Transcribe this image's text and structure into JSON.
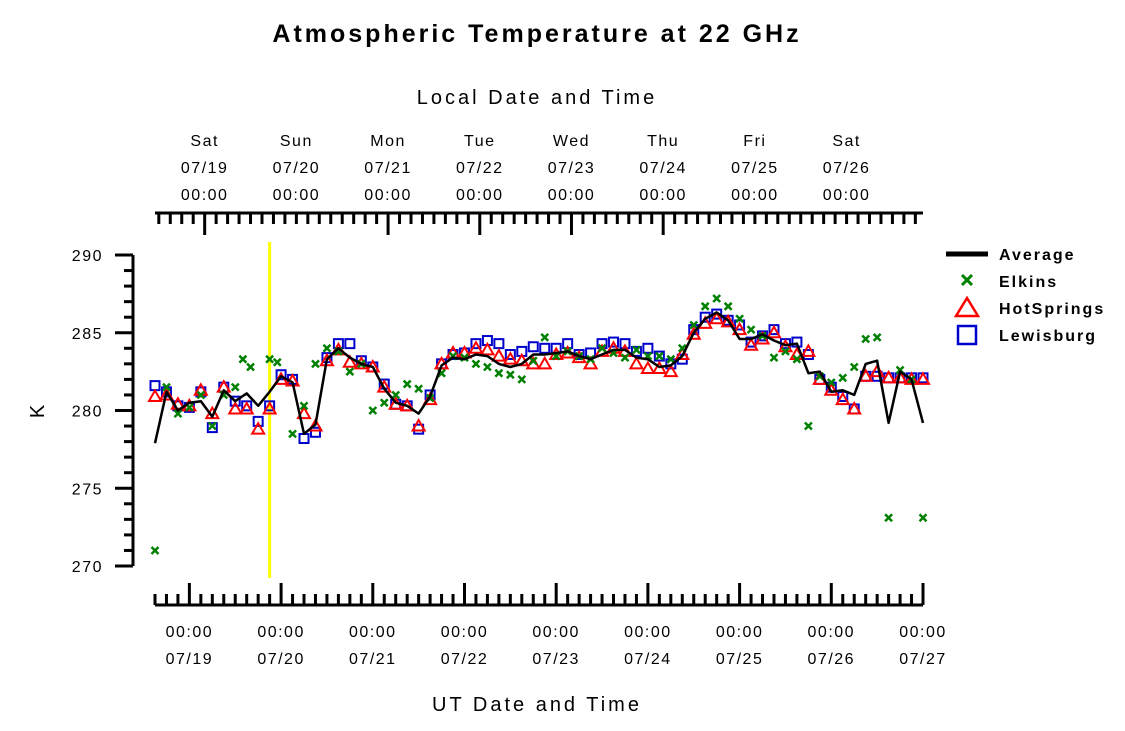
{
  "chart_data": {
    "type": "line",
    "title": "Atmospheric Temperature at 22 GHz",
    "ylabel": "K",
    "ylim": [
      270,
      290
    ],
    "yticks": [
      270,
      275,
      280,
      285,
      290
    ],
    "top_axis": {
      "label": "Local Date and Time",
      "ticks": [
        {
          "day": "Sat",
          "date": "07/19",
          "time": "00:00"
        },
        {
          "day": "Sun",
          "date": "07/20",
          "time": "00:00"
        },
        {
          "day": "Mon",
          "date": "07/21",
          "time": "00:00"
        },
        {
          "day": "Tue",
          "date": "07/22",
          "time": "00:00"
        },
        {
          "day": "Wed",
          "date": "07/23",
          "time": "00:00"
        },
        {
          "day": "Thu",
          "date": "07/24",
          "time": "00:00"
        },
        {
          "day": "Fri",
          "date": "07/25",
          "time": "00:00"
        },
        {
          "day": "Sat",
          "date": "07/26",
          "time": "00:00"
        }
      ]
    },
    "bottom_axis": {
      "label": "UT Date and Time",
      "ticks": [
        {
          "time": "00:00",
          "date": "07/19"
        },
        {
          "time": "00:00",
          "date": "07/20"
        },
        {
          "time": "00:00",
          "date": "07/21"
        },
        {
          "time": "00:00",
          "date": "07/22"
        },
        {
          "time": "00:00",
          "date": "07/23"
        },
        {
          "time": "00:00",
          "date": "07/24"
        },
        {
          "time": "00:00",
          "date": "07/25"
        },
        {
          "time": "00:00",
          "date": "07/26"
        },
        {
          "time": "00:00",
          "date": "07/27"
        }
      ]
    },
    "xlim_ut_days": [
      "07/18 15:00",
      "07/27 00:00"
    ],
    "marker_line": {
      "x": "07/19 21:00",
      "color": "#ffff00"
    },
    "legend_position": "right",
    "series": [
      {
        "name": "Average",
        "color": "#000000",
        "style": "line",
        "x": [
          "07/18 15:00",
          "07/18 18:00",
          "07/18 21:00",
          "07/19 00:00",
          "07/19 03:00",
          "07/19 06:00",
          "07/19 09:00",
          "07/19 12:00",
          "07/19 15:00",
          "07/19 18:00",
          "07/19 21:00",
          "07/20 00:00",
          "07/20 03:00",
          "07/20 06:00",
          "07/20 09:00",
          "07/20 12:00",
          "07/20 15:00",
          "07/20 18:00",
          "07/20 21:00",
          "07/21 00:00",
          "07/21 03:00",
          "07/21 06:00",
          "07/21 09:00",
          "07/21 12:00",
          "07/21 15:00",
          "07/21 18:00",
          "07/21 21:00",
          "07/22 00:00",
          "07/22 03:00",
          "07/22 06:00",
          "07/22 09:00",
          "07/22 12:00",
          "07/22 15:00",
          "07/22 18:00",
          "07/22 21:00",
          "07/23 00:00",
          "07/23 03:00",
          "07/23 06:00",
          "07/23 09:00",
          "07/23 12:00",
          "07/23 15:00",
          "07/23 18:00",
          "07/23 21:00",
          "07/24 00:00",
          "07/24 03:00",
          "07/24 06:00",
          "07/24 09:00",
          "07/24 12:00",
          "07/24 15:00",
          "07/24 18:00",
          "07/24 21:00",
          "07/25 00:00",
          "07/25 03:00",
          "07/25 06:00",
          "07/25 09:00",
          "07/25 12:00",
          "07/25 15:00",
          "07/25 18:00",
          "07/25 21:00",
          "07/26 00:00",
          "07/26 03:00",
          "07/26 06:00",
          "07/26 09:00",
          "07/26 12:00",
          "07/26 15:00",
          "07/26 18:00",
          "07/26 21:00",
          "07/27 00:00"
        ],
        "values": [
          277.9,
          281.2,
          280.0,
          280.5,
          280.6,
          279.6,
          281.3,
          280.6,
          281.1,
          280.3,
          281.2,
          282.2,
          281.8,
          278.5,
          279.1,
          283.3,
          284.0,
          283.4,
          283.0,
          282.8,
          281.4,
          280.5,
          280.3,
          279.8,
          280.9,
          282.9,
          283.4,
          283.3,
          283.6,
          283.5,
          283.0,
          282.8,
          283.0,
          283.6,
          283.6,
          283.7,
          283.8,
          283.5,
          283.3,
          283.6,
          283.9,
          283.9,
          283.4,
          283.3,
          282.8,
          282.9,
          283.5,
          285.0,
          285.9,
          286.3,
          285.8,
          284.6,
          284.6,
          284.9,
          284.5,
          284.2,
          284.3,
          282.4,
          282.5,
          281.2,
          281.3,
          281.0,
          283.0,
          283.2,
          279.2,
          282.5,
          282.0,
          279.2
        ]
      },
      {
        "name": "Elkins",
        "color": "#008000",
        "style": "x",
        "x": [
          "07/18 15:00",
          "07/18 18:00",
          "07/18 21:00",
          "07/19 00:00",
          "07/19 03:00",
          "07/19 06:00",
          "07/19 09:00",
          "07/19 12:00",
          "07/19 14:00",
          "07/19 16:00",
          "07/19 21:00",
          "07/19 23:00",
          "07/20 03:00",
          "07/20 06:00",
          "07/20 09:00",
          "07/20 12:00",
          "07/20 15:00",
          "07/20 18:00",
          "07/20 21:00",
          "07/21 00:00",
          "07/21 03:00",
          "07/21 06:00",
          "07/21 09:00",
          "07/21 12:00",
          "07/21 15:00",
          "07/21 18:00",
          "07/21 21:00",
          "07/22 00:00",
          "07/22 03:00",
          "07/22 06:00",
          "07/22 09:00",
          "07/22 12:00",
          "07/22 15:00",
          "07/22 18:00",
          "07/22 21:00",
          "07/23 00:00",
          "07/23 03:00",
          "07/23 06:00",
          "07/23 09:00",
          "07/23 12:00",
          "07/23 15:00",
          "07/23 18:00",
          "07/23 21:00",
          "07/24 00:00",
          "07/24 03:00",
          "07/24 06:00",
          "07/24 09:00",
          "07/24 12:00",
          "07/24 15:00",
          "07/24 18:00",
          "07/24 21:00",
          "07/25 00:00",
          "07/25 03:00",
          "07/25 06:00",
          "07/25 09:00",
          "07/25 12:00",
          "07/25 15:00",
          "07/25 18:00",
          "07/25 21:00",
          "07/26 00:00",
          "07/26 03:00",
          "07/26 06:00",
          "07/26 09:00",
          "07/26 12:00",
          "07/26 15:00",
          "07/26 18:00",
          "07/26 21:00",
          "07/27 00:00"
        ],
        "values": [
          271.0,
          281.5,
          279.8,
          280.2,
          281.0,
          279.0,
          281.0,
          281.5,
          283.3,
          282.8,
          283.3,
          283.1,
          278.5,
          280.3,
          283.0,
          284.0,
          283.8,
          282.5,
          283.0,
          280.0,
          280.5,
          281.0,
          281.7,
          281.4,
          280.8,
          282.4,
          283.5,
          283.4,
          283.0,
          282.8,
          282.4,
          282.3,
          282.0,
          283.2,
          284.7,
          283.5,
          283.8,
          283.5,
          283.3,
          284.0,
          283.7,
          283.4,
          283.9,
          283.5,
          283.5,
          283.3,
          284.0,
          285.5,
          286.7,
          287.2,
          286.7,
          285.9,
          285.2,
          284.8,
          283.4,
          283.8,
          283.3,
          279.0,
          282.2,
          281.8,
          282.1,
          282.8,
          284.6,
          284.7,
          273.1,
          282.6,
          282.0,
          273.1
        ]
      },
      {
        "name": "HotSprings",
        "color": "#ff0000",
        "style": "triangle",
        "x": [
          "07/18 15:00",
          "07/18 18:00",
          "07/18 21:00",
          "07/19 00:00",
          "07/19 03:00",
          "07/19 06:00",
          "07/19 09:00",
          "07/19 12:00",
          "07/19 15:00",
          "07/19 18:00",
          "07/19 21:00",
          "07/20 00:00",
          "07/20 03:00",
          "07/20 06:00",
          "07/20 09:00",
          "07/20 12:00",
          "07/20 15:00",
          "07/20 18:00",
          "07/20 21:00",
          "07/21 00:00",
          "07/21 03:00",
          "07/21 06:00",
          "07/21 09:00",
          "07/21 12:00",
          "07/21 15:00",
          "07/21 18:00",
          "07/21 21:00",
          "07/22 00:00",
          "07/22 03:00",
          "07/22 06:00",
          "07/22 09:00",
          "07/22 12:00",
          "07/22 15:00",
          "07/22 18:00",
          "07/22 21:00",
          "07/23 00:00",
          "07/23 03:00",
          "07/23 06:00",
          "07/23 09:00",
          "07/23 12:00",
          "07/23 15:00",
          "07/23 18:00",
          "07/23 21:00",
          "07/24 00:00",
          "07/24 03:00",
          "07/24 06:00",
          "07/24 09:00",
          "07/24 12:00",
          "07/24 15:00",
          "07/24 18:00",
          "07/24 21:00",
          "07/25 00:00",
          "07/25 03:00",
          "07/25 06:00",
          "07/25 09:00",
          "07/25 12:00",
          "07/25 15:00",
          "07/25 18:00",
          "07/25 21:00",
          "07/26 00:00",
          "07/26 03:00",
          "07/26 06:00",
          "07/26 09:00",
          "07/26 12:00",
          "07/26 15:00",
          "07/26 18:00",
          "07/26 21:00",
          "07/27 00:00"
        ],
        "values": [
          280.9,
          281.0,
          280.4,
          280.3,
          281.3,
          279.8,
          281.5,
          280.1,
          280.1,
          278.8,
          280.1,
          282.0,
          281.9,
          279.8,
          279.0,
          283.2,
          283.9,
          283.1,
          283.0,
          282.8,
          281.5,
          280.4,
          280.3,
          279.0,
          280.7,
          283.0,
          283.7,
          283.7,
          284.0,
          283.9,
          283.5,
          283.3,
          283.2,
          283.0,
          283.0,
          283.6,
          283.7,
          283.4,
          283.0,
          283.8,
          284.0,
          283.8,
          283.0,
          282.7,
          282.7,
          282.5,
          283.6,
          284.9,
          285.6,
          285.9,
          285.7,
          285.2,
          284.2,
          284.6,
          285.0,
          284.1,
          283.6,
          283.8,
          282.0,
          281.3,
          280.7,
          280.1,
          282.2,
          282.5,
          282.1,
          282.1,
          282.0,
          282.0
        ]
      },
      {
        "name": "Lewisburg",
        "color": "#0000cc",
        "style": "square",
        "x": [
          "07/18 15:00",
          "07/18 18:00",
          "07/18 21:00",
          "07/19 00:00",
          "07/19 03:00",
          "07/19 06:00",
          "07/19 09:00",
          "07/19 12:00",
          "07/19 15:00",
          "07/19 18:00",
          "07/19 21:00",
          "07/20 00:00",
          "07/20 03:00",
          "07/20 06:00",
          "07/20 09:00",
          "07/20 12:00",
          "07/20 15:00",
          "07/20 18:00",
          "07/20 21:00",
          "07/21 00:00",
          "07/21 03:00",
          "07/21 06:00",
          "07/21 09:00",
          "07/21 12:00",
          "07/21 15:00",
          "07/21 18:00",
          "07/21 21:00",
          "07/22 00:00",
          "07/22 03:00",
          "07/22 06:00",
          "07/22 09:00",
          "07/22 12:00",
          "07/22 15:00",
          "07/22 18:00",
          "07/22 21:00",
          "07/23 00:00",
          "07/23 03:00",
          "07/23 06:00",
          "07/23 09:00",
          "07/23 12:00",
          "07/23 15:00",
          "07/23 18:00",
          "07/23 21:00",
          "07/24 00:00",
          "07/24 03:00",
          "07/24 06:00",
          "07/24 09:00",
          "07/24 12:00",
          "07/24 15:00",
          "07/24 18:00",
          "07/24 21:00",
          "07/25 00:00",
          "07/25 03:00",
          "07/25 06:00",
          "07/25 09:00",
          "07/25 12:00",
          "07/25 15:00",
          "07/25 18:00",
          "07/25 21:00",
          "07/26 00:00",
          "07/26 03:00",
          "07/26 06:00",
          "07/26 09:00",
          "07/26 12:00",
          "07/26 15:00",
          "07/26 18:00",
          "07/26 21:00",
          "07/27 00:00"
        ],
        "values": [
          281.6,
          281.2,
          280.3,
          280.2,
          281.2,
          278.9,
          281.5,
          280.6,
          280.3,
          279.3,
          280.3,
          282.3,
          282.0,
          278.2,
          278.6,
          283.4,
          284.3,
          284.3,
          283.2,
          282.8,
          281.7,
          280.4,
          280.3,
          278.8,
          281.0,
          283.0,
          283.6,
          283.7,
          284.3,
          284.5,
          284.3,
          283.6,
          283.8,
          284.1,
          284.0,
          284.0,
          284.3,
          283.6,
          283.7,
          284.3,
          284.4,
          284.3,
          283.8,
          284.0,
          283.5,
          283.0,
          283.3,
          285.2,
          286.0,
          286.2,
          285.8,
          285.5,
          284.4,
          284.8,
          285.2,
          284.3,
          284.4,
          283.6,
          282.0,
          281.5,
          280.9,
          280.1,
          282.2,
          282.2,
          282.1,
          282.1,
          282.1,
          282.1
        ]
      }
    ]
  }
}
